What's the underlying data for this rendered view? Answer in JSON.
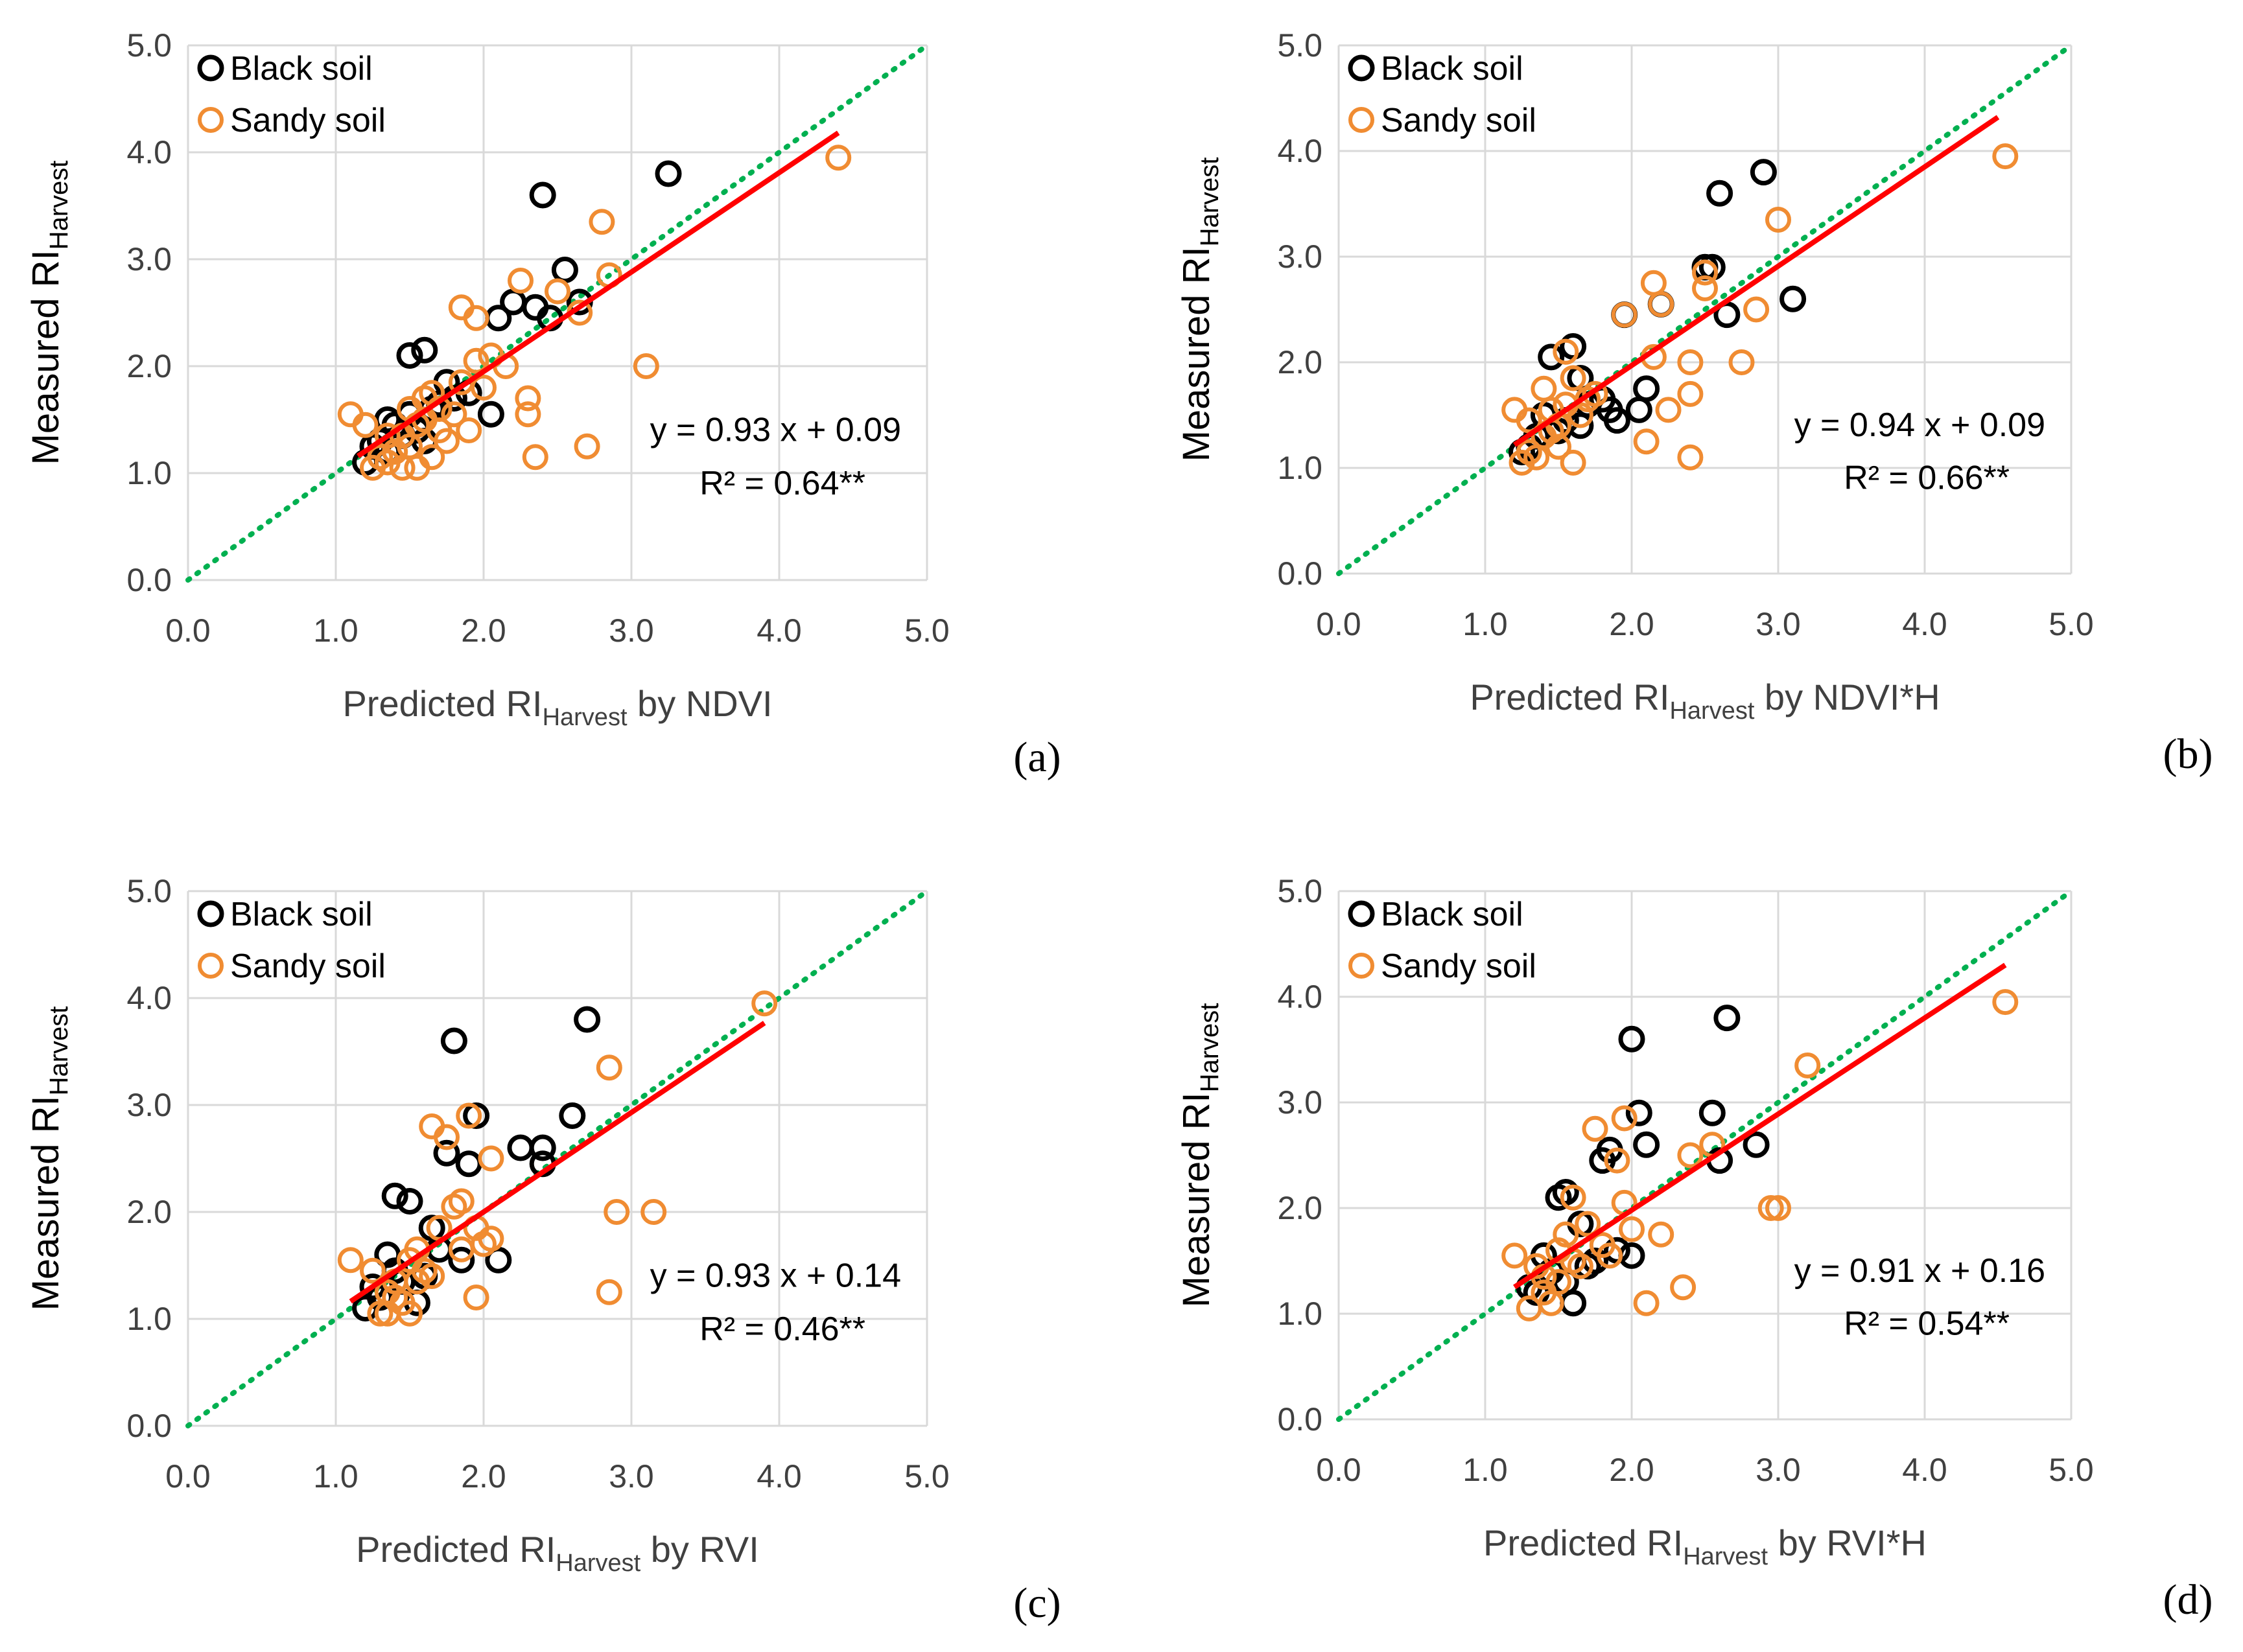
{
  "figure": {
    "colors": {
      "black_soil": "#000000",
      "sandy_soil": "#F08C32",
      "fit_line": "#FF0000",
      "identity_line": "#00B050",
      "grid": "#D9D9D9",
      "text": "#404040"
    }
  },
  "chart_data": [
    {
      "type": "scatter",
      "panel": "(a)",
      "ylabel": "Measured RI",
      "ylabel_sub": "Harvest",
      "xlabel_pre": "Predicted RI",
      "xlabel_sub": "Harvest",
      "xlabel_post": " by NDVI",
      "xlim": [
        0,
        5
      ],
      "ylim": [
        0,
        5
      ],
      "xticks": [
        "0.0",
        "1.0",
        "2.0",
        "3.0",
        "4.0",
        "5.0"
      ],
      "yticks": [
        "0.0",
        "1.0",
        "2.0",
        "3.0",
        "4.0",
        "5.0"
      ],
      "grid": true,
      "legend": [
        "Black soil",
        "Sandy soil"
      ],
      "legend_position": "top-left",
      "equation": "y = 0.93 x + 0.09",
      "r2": "R² = 0.64**",
      "fit": {
        "slope": 0.93,
        "intercept": 0.09,
        "x_range": [
          1.15,
          4.4
        ]
      },
      "series": [
        {
          "name": "Black soil",
          "points": [
            [
              1.2,
              1.1
            ],
            [
              1.25,
              1.25
            ],
            [
              1.35,
              1.5
            ],
            [
              1.4,
              1.45
            ],
            [
              1.5,
              1.55
            ],
            [
              1.5,
              2.1
            ],
            [
              1.6,
              2.15
            ],
            [
              1.65,
              1.6
            ],
            [
              1.75,
              1.85
            ],
            [
              1.8,
              1.7
            ],
            [
              2.05,
              1.55
            ],
            [
              2.1,
              2.45
            ],
            [
              2.2,
              2.6
            ],
            [
              2.35,
              2.55
            ],
            [
              2.4,
              3.6
            ],
            [
              2.45,
              2.45
            ],
            [
              2.55,
              2.9
            ],
            [
              2.65,
              2.6
            ],
            [
              3.25,
              3.8
            ],
            [
              1.3,
              1.3
            ],
            [
              1.45,
              1.35
            ],
            [
              1.55,
              1.4
            ],
            [
              1.7,
              1.65
            ],
            [
              1.9,
              1.75
            ],
            [
              1.35,
              1.2
            ],
            [
              1.6,
              1.3
            ]
          ]
        },
        {
          "name": "Sandy soil",
          "points": [
            [
              1.1,
              1.55
            ],
            [
              1.2,
              1.45
            ],
            [
              1.25,
              1.05
            ],
            [
              1.3,
              1.15
            ],
            [
              1.35,
              1.35
            ],
            [
              1.35,
              1.1
            ],
            [
              1.4,
              1.2
            ],
            [
              1.45,
              1.35
            ],
            [
              1.5,
              1.6
            ],
            [
              1.55,
              1.05
            ],
            [
              1.55,
              1.45
            ],
            [
              1.6,
              1.7
            ],
            [
              1.65,
              1.75
            ],
            [
              1.65,
              1.15
            ],
            [
              1.7,
              1.4
            ],
            [
              1.75,
              1.3
            ],
            [
              1.8,
              1.55
            ],
            [
              1.85,
              1.85
            ],
            [
              1.85,
              2.55
            ],
            [
              1.9,
              1.4
            ],
            [
              1.95,
              2.05
            ],
            [
              1.95,
              2.45
            ],
            [
              2.0,
              1.8
            ],
            [
              2.05,
              2.1
            ],
            [
              2.15,
              2.0
            ],
            [
              2.25,
              2.8
            ],
            [
              2.3,
              1.55
            ],
            [
              2.3,
              1.7
            ],
            [
              2.35,
              1.15
            ],
            [
              2.5,
              2.7
            ],
            [
              2.65,
              2.5
            ],
            [
              2.7,
              1.25
            ],
            [
              2.8,
              3.35
            ],
            [
              2.85,
              2.85
            ],
            [
              3.1,
              2.0
            ],
            [
              4.4,
              3.95
            ],
            [
              1.5,
              1.25
            ],
            [
              1.7,
              1.6
            ],
            [
              1.45,
              1.05
            ],
            [
              1.6,
              1.5
            ]
          ]
        }
      ]
    },
    {
      "type": "scatter",
      "panel": "(b)",
      "ylabel": "Measured RI",
      "ylabel_sub": "Harvest",
      "xlabel_pre": "Predicted RI",
      "xlabel_sub": "Harvest",
      "xlabel_post": " by NDVI*H",
      "xlim": [
        0,
        5
      ],
      "ylim": [
        0,
        5
      ],
      "xticks": [
        "0.0",
        "1.0",
        "2.0",
        "3.0",
        "4.0",
        "5.0"
      ],
      "yticks": [
        "0.0",
        "1.0",
        "2.0",
        "3.0",
        "4.0",
        "5.0"
      ],
      "grid": true,
      "legend": [
        "Black soil",
        "Sandy soil"
      ],
      "legend_position": "top-left",
      "equation": "y = 0.94 x + 0.09",
      "r2": "R² = 0.66**",
      "fit": {
        "slope": 0.94,
        "intercept": 0.09,
        "x_range": [
          1.2,
          4.5
        ]
      },
      "series": [
        {
          "name": "Black soil",
          "points": [
            [
              1.25,
              1.15
            ],
            [
              1.35,
              1.3
            ],
            [
              1.4,
              1.5
            ],
            [
              1.45,
              2.05
            ],
            [
              1.55,
              1.45
            ],
            [
              1.6,
              2.15
            ],
            [
              1.65,
              1.85
            ],
            [
              1.7,
              1.6
            ],
            [
              1.85,
              1.55
            ],
            [
              1.9,
              1.45
            ],
            [
              1.95,
              2.45
            ],
            [
              2.05,
              1.55
            ],
            [
              2.1,
              1.75
            ],
            [
              2.2,
              2.55
            ],
            [
              2.5,
              2.9
            ],
            [
              2.55,
              2.9
            ],
            [
              2.6,
              3.6
            ],
            [
              2.65,
              2.45
            ],
            [
              2.9,
              3.8
            ],
            [
              3.1,
              2.6
            ],
            [
              1.5,
              1.35
            ],
            [
              1.65,
              1.4
            ],
            [
              1.8,
              1.65
            ],
            [
              1.3,
              1.2
            ]
          ]
        },
        {
          "name": "Sandy soil",
          "points": [
            [
              1.2,
              1.55
            ],
            [
              1.25,
              1.05
            ],
            [
              1.3,
              1.45
            ],
            [
              1.35,
              1.1
            ],
            [
              1.4,
              1.75
            ],
            [
              1.45,
              1.35
            ],
            [
              1.5,
              1.2
            ],
            [
              1.55,
              1.6
            ],
            [
              1.55,
              2.1
            ],
            [
              1.6,
              1.05
            ],
            [
              1.6,
              1.85
            ],
            [
              1.65,
              1.5
            ],
            [
              1.75,
              1.7
            ],
            [
              1.95,
              2.45
            ],
            [
              2.1,
              1.25
            ],
            [
              2.15,
              2.05
            ],
            [
              2.15,
              2.75
            ],
            [
              2.2,
              2.55
            ],
            [
              2.25,
              1.55
            ],
            [
              2.4,
              1.7
            ],
            [
              2.4,
              2.0
            ],
            [
              2.4,
              1.1
            ],
            [
              2.5,
              2.85
            ],
            [
              2.5,
              2.7
            ],
            [
              2.75,
              2.0
            ],
            [
              2.85,
              2.5
            ],
            [
              3.0,
              3.35
            ],
            [
              4.55,
              3.95
            ],
            [
              1.4,
              1.3
            ],
            [
              1.5,
              1.4
            ],
            [
              1.7,
              1.65
            ],
            [
              1.3,
              1.15
            ],
            [
              1.45,
              1.55
            ]
          ]
        }
      ]
    },
    {
      "type": "scatter",
      "panel": "(c)",
      "ylabel": "Measured RI",
      "ylabel_sub": "Harvest",
      "xlabel_pre": "Predicted RI",
      "xlabel_sub": "Harvest",
      "xlabel_post": " by RVI",
      "xlim": [
        0,
        5
      ],
      "ylim": [
        0,
        5
      ],
      "xticks": [
        "0.0",
        "1.0",
        "2.0",
        "3.0",
        "4.0",
        "5.0"
      ],
      "yticks": [
        "0.0",
        "1.0",
        "2.0",
        "3.0",
        "4.0",
        "5.0"
      ],
      "grid": true,
      "legend": [
        "Black soil",
        "Sandy soil"
      ],
      "legend_position": "top-left",
      "equation": "y = 0.93 x + 0.14",
      "r2": "R² = 0.46**",
      "fit": {
        "slope": 0.93,
        "intercept": 0.14,
        "x_range": [
          1.1,
          3.9
        ]
      },
      "series": [
        {
          "name": "Black soil",
          "points": [
            [
              1.2,
              1.1
            ],
            [
              1.25,
              1.3
            ],
            [
              1.35,
              1.6
            ],
            [
              1.4,
              1.45
            ],
            [
              1.4,
              2.15
            ],
            [
              1.5,
              2.1
            ],
            [
              1.55,
              1.15
            ],
            [
              1.65,
              1.85
            ],
            [
              1.7,
              1.65
            ],
            [
              1.75,
              2.55
            ],
            [
              1.8,
              3.6
            ],
            [
              1.85,
              1.55
            ],
            [
              1.9,
              2.45
            ],
            [
              1.95,
              2.9
            ],
            [
              2.1,
              1.55
            ],
            [
              2.25,
              2.6
            ],
            [
              2.4,
              2.6
            ],
            [
              2.4,
              2.45
            ],
            [
              2.6,
              2.9
            ],
            [
              2.7,
              3.8
            ],
            [
              1.3,
              1.2
            ],
            [
              1.6,
              1.4
            ],
            [
              1.45,
              1.35
            ]
          ]
        },
        {
          "name": "Sandy soil",
          "points": [
            [
              1.1,
              1.55
            ],
            [
              1.25,
              1.45
            ],
            [
              1.3,
              1.05
            ],
            [
              1.35,
              1.25
            ],
            [
              1.35,
              1.05
            ],
            [
              1.4,
              1.35
            ],
            [
              1.45,
              1.15
            ],
            [
              1.5,
              1.55
            ],
            [
              1.55,
              1.65
            ],
            [
              1.55,
              1.35
            ],
            [
              1.6,
              1.45
            ],
            [
              1.65,
              2.8
            ],
            [
              1.7,
              1.85
            ],
            [
              1.75,
              2.7
            ],
            [
              1.8,
              2.05
            ],
            [
              1.85,
              2.1
            ],
            [
              1.85,
              1.65
            ],
            [
              1.9,
              2.9
            ],
            [
              1.95,
              1.85
            ],
            [
              1.95,
              1.2
            ],
            [
              2.0,
              1.7
            ],
            [
              2.05,
              2.5
            ],
            [
              2.05,
              1.75
            ],
            [
              2.85,
              1.25
            ],
            [
              2.85,
              3.35
            ],
            [
              2.9,
              2.0
            ],
            [
              3.15,
              2.0
            ],
            [
              3.9,
              3.95
            ],
            [
              1.5,
              1.05
            ],
            [
              1.65,
              1.4
            ],
            [
              1.4,
              1.2
            ]
          ]
        }
      ]
    },
    {
      "type": "scatter",
      "panel": "(d)",
      "ylabel": "Measured RI",
      "ylabel_sub": "Harvest",
      "xlabel_pre": "Predicted RI",
      "xlabel_sub": "Harvest",
      "xlabel_post": " by RVI*H",
      "xlim": [
        0,
        5
      ],
      "ylim": [
        0,
        5
      ],
      "xticks": [
        "0.0",
        "1.0",
        "2.0",
        "3.0",
        "4.0",
        "5.0"
      ],
      "yticks": [
        "0.0",
        "1.0",
        "2.0",
        "3.0",
        "4.0",
        "5.0"
      ],
      "grid": true,
      "legend": [
        "Black soil",
        "Sandy soil"
      ],
      "legend_position": "top-left",
      "equation": "y = 0.91 x + 0.16",
      "r2": "R² = 0.54**",
      "fit": {
        "slope": 0.91,
        "intercept": 0.16,
        "x_range": [
          1.2,
          4.55
        ]
      },
      "series": [
        {
          "name": "Black soil",
          "points": [
            [
              1.3,
              1.25
            ],
            [
              1.4,
              1.55
            ],
            [
              1.45,
              1.4
            ],
            [
              1.5,
              2.1
            ],
            [
              1.55,
              2.15
            ],
            [
              1.6,
              1.1
            ],
            [
              1.65,
              1.85
            ],
            [
              1.75,
              1.5
            ],
            [
              1.8,
              2.45
            ],
            [
              1.85,
              2.55
            ],
            [
              1.9,
              1.6
            ],
            [
              2.0,
              3.6
            ],
            [
              2.0,
              1.55
            ],
            [
              2.05,
              2.9
            ],
            [
              2.1,
              2.6
            ],
            [
              2.55,
              2.9
            ],
            [
              2.6,
              2.45
            ],
            [
              2.65,
              3.8
            ],
            [
              2.85,
              2.6
            ],
            [
              1.55,
              1.3
            ],
            [
              1.7,
              1.45
            ],
            [
              1.35,
              1.2
            ]
          ]
        },
        {
          "name": "Sandy soil",
          "points": [
            [
              1.2,
              1.55
            ],
            [
              1.3,
              1.05
            ],
            [
              1.35,
              1.45
            ],
            [
              1.4,
              1.2
            ],
            [
              1.45,
              1.1
            ],
            [
              1.5,
              1.6
            ],
            [
              1.55,
              1.75
            ],
            [
              1.6,
              2.1
            ],
            [
              1.65,
              1.45
            ],
            [
              1.7,
              1.85
            ],
            [
              1.75,
              2.75
            ],
            [
              1.8,
              1.65
            ],
            [
              1.85,
              1.55
            ],
            [
              1.9,
              2.45
            ],
            [
              1.95,
              2.85
            ],
            [
              1.95,
              2.05
            ],
            [
              2.0,
              1.8
            ],
            [
              2.1,
              1.1
            ],
            [
              2.2,
              1.75
            ],
            [
              2.35,
              1.25
            ],
            [
              2.4,
              2.5
            ],
            [
              2.55,
              2.6
            ],
            [
              2.95,
              2.0
            ],
            [
              3.0,
              2.0
            ],
            [
              3.2,
              3.35
            ],
            [
              4.55,
              3.95
            ],
            [
              1.5,
              1.3
            ],
            [
              1.6,
              1.5
            ],
            [
              1.4,
              1.35
            ]
          ]
        }
      ]
    }
  ]
}
